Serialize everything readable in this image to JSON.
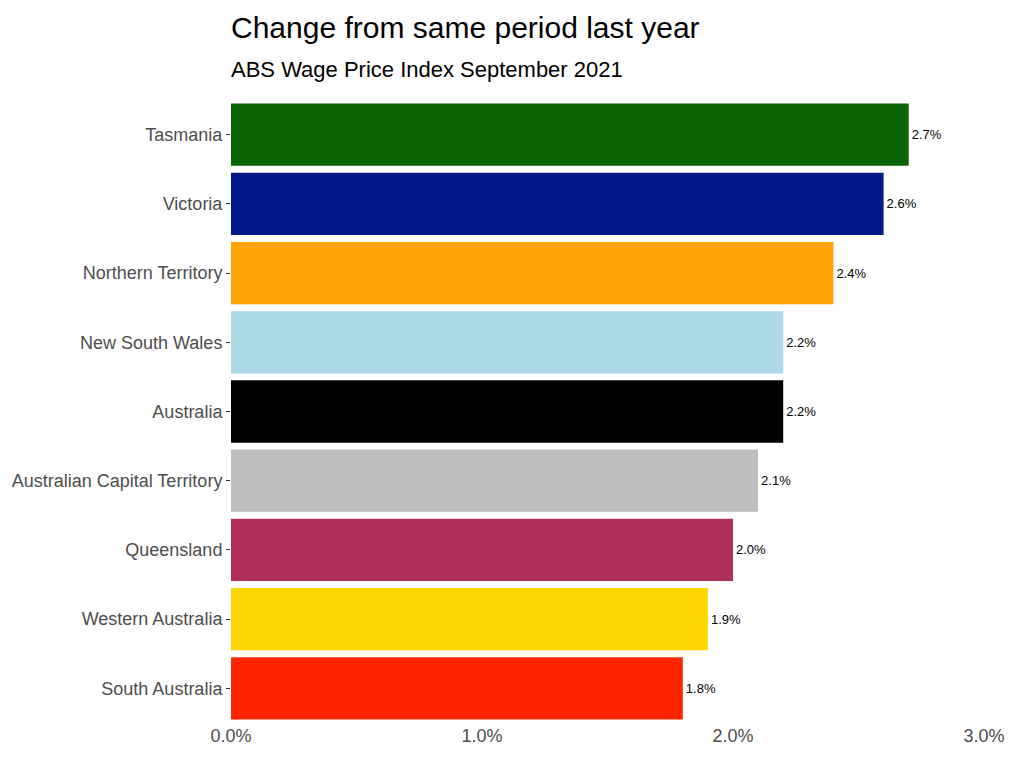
{
  "chart_data": {
    "type": "bar",
    "title": "Change from same period last year",
    "subtitle": "ABS Wage Price Index September 2021",
    "orientation": "horizontal",
    "categories": [
      "Tasmania",
      "Victoria",
      "Northern Territory",
      "New South Wales",
      "Australia",
      "Australian Capital Territory",
      "Queensland",
      "Western Australia",
      "South Australia"
    ],
    "values": [
      2.7,
      2.6,
      2.4,
      2.2,
      2.2,
      2.1,
      2.0,
      1.9,
      1.8
    ],
    "value_labels": [
      "2.7%",
      "2.6%",
      "2.4%",
      "2.2%",
      "2.2%",
      "2.1%",
      "2.0%",
      "1.9%",
      "1.8%"
    ],
    "colors": [
      "#0c6304",
      "#001a8c",
      "#ffa505",
      "#add8e6",
      "#000000",
      "#bebebe",
      "#b0305c",
      "#ffd700",
      "#ff2500"
    ],
    "xlim": [
      0,
      3
    ],
    "xticks": [
      {
        "value": 0,
        "label": "0.0%"
      },
      {
        "value": 1,
        "label": "1.0%"
      },
      {
        "value": 2,
        "label": "2.0%"
      },
      {
        "value": 3,
        "label": "3.0%"
      }
    ],
    "grid": false,
    "data_labels": true
  }
}
